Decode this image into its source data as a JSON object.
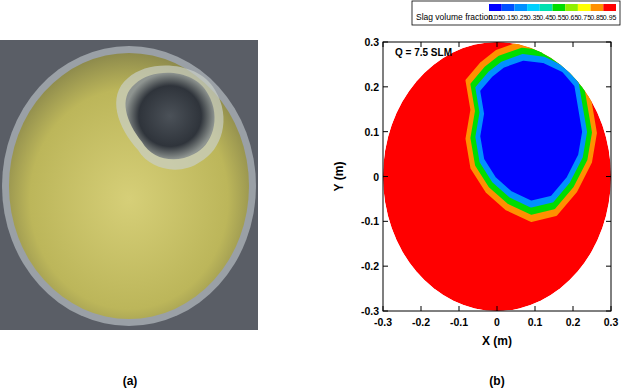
{
  "photo": {
    "label": "(a)"
  },
  "chart_data": {
    "type": "contour",
    "label": "(b)",
    "annotation": "Q = 7.5 SLM",
    "xlabel": "X (m)",
    "ylabel": "Y (m)",
    "xlim": [
      -0.3,
      0.3
    ],
    "ylim": [
      -0.3,
      0.3
    ],
    "xticks": [
      -0.3,
      -0.2,
      -0.1,
      0,
      0.1,
      0.2,
      0.3
    ],
    "yticks": [
      -0.3,
      -0.2,
      -0.1,
      0,
      0.1,
      0.2,
      0.3
    ],
    "colorbar": {
      "title": "Slag volume fraction:",
      "levels": [
        0.05,
        0.15,
        0.25,
        0.35,
        0.45,
        0.55,
        0.65,
        0.75,
        0.85,
        0.95
      ],
      "colors": [
        "#0000ff",
        "#0050ff",
        "#0090ff",
        "#00d0ff",
        "#00e0b0",
        "#00dd00",
        "#90f000",
        "#ffff00",
        "#ff9000",
        "#ff0000"
      ]
    },
    "regions": [
      {
        "value": 0.95,
        "radius": 0.3
      },
      {
        "value": 0.85,
        "x": [
          -0.001,
          0.064,
          0.129,
          0.194,
          0.233,
          0.246,
          0.259,
          0.246,
          0.207,
          0.155,
          0.09,
          0.025,
          -0.027,
          -0.066,
          -0.079,
          -0.066,
          -0.079,
          -0.04
        ],
        "y": [
          0.279,
          0.299,
          0.292,
          0.266,
          0.227,
          0.162,
          0.097,
          0.032,
          -0.033,
          -0.085,
          -0.098,
          -0.072,
          -0.033,
          0.019,
          0.084,
          0.149,
          0.214,
          0.253
        ]
      },
      {
        "value": 0.55,
        "x": [
          0.006,
          0.066,
          0.126,
          0.186,
          0.222,
          0.234,
          0.246,
          0.234,
          0.198,
          0.15,
          0.09,
          0.03,
          -0.018,
          -0.054,
          -0.066,
          -0.054,
          -0.066,
          -0.03
        ],
        "y": [
          0.266,
          0.284,
          0.278,
          0.254,
          0.218,
          0.158,
          0.098,
          0.038,
          -0.022,
          -0.07,
          -0.082,
          -0.058,
          -0.022,
          0.026,
          0.086,
          0.146,
          0.206,
          0.242
        ]
      },
      {
        "value": 0.25,
        "x": [
          0.013,
          0.068,
          0.123,
          0.178,
          0.211,
          0.222,
          0.233,
          0.222,
          0.189,
          0.145,
          0.09,
          0.035,
          -0.009,
          -0.042,
          -0.053,
          -0.042,
          -0.053,
          -0.02
        ],
        "y": [
          0.253,
          0.27,
          0.264,
          0.242,
          0.209,
          0.154,
          0.099,
          0.044,
          -0.011,
          -0.055,
          -0.066,
          -0.044,
          -0.011,
          0.033,
          0.088,
          0.143,
          0.198,
          0.231
        ]
      },
      {
        "value": 0.05,
        "x": [
          0.02,
          0.07,
          0.12,
          0.17,
          0.2,
          0.21,
          0.22,
          0.21,
          0.18,
          0.14,
          0.09,
          0.04,
          0.0,
          -0.03,
          -0.04,
          -0.03,
          -0.04,
          -0.01
        ],
        "y": [
          0.24,
          0.255,
          0.25,
          0.23,
          0.2,
          0.15,
          0.1,
          0.05,
          0.0,
          -0.04,
          -0.05,
          -0.03,
          0.0,
          0.04,
          0.09,
          0.14,
          0.19,
          0.22
        ]
      }
    ]
  }
}
